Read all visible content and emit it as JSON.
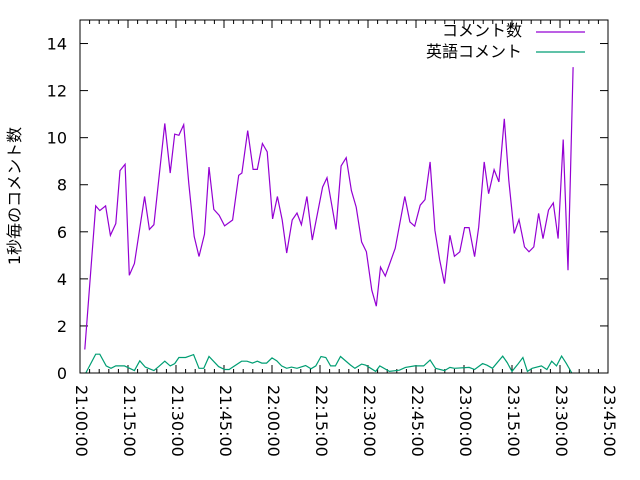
{
  "chart_data": {
    "type": "line",
    "title": "",
    "xlabel": "",
    "ylabel": "1秒毎のコメント数",
    "xlim_minutes_from_2100": [
      0,
      165
    ],
    "ylim": [
      0,
      15
    ],
    "x_ticks": [
      "21:00:00",
      "21:15:00",
      "21:30:00",
      "21:45:00",
      "22:00:00",
      "22:15:00",
      "22:30:00",
      "22:45:00",
      "23:00:00",
      "23:15:00",
      "23:30:00",
      "23:45:00"
    ],
    "x_tick_minutes": [
      0,
      15,
      30,
      45,
      60,
      75,
      90,
      105,
      120,
      135,
      150,
      165
    ],
    "y_ticks": [
      "0",
      "2",
      "4",
      "6",
      "8",
      "10",
      "12",
      "14"
    ],
    "y_tick_values": [
      0,
      2,
      4,
      6,
      8,
      10,
      12,
      14
    ],
    "grid": false,
    "legend_position": "top-right",
    "series": [
      {
        "name": "コメント数",
        "color": "#9400d3",
        "points": [
          [
            1.5,
            1.0
          ],
          [
            4.9,
            7.1
          ],
          [
            6.2,
            6.9
          ],
          [
            8.0,
            7.1
          ],
          [
            9.5,
            5.85
          ],
          [
            11.2,
            6.35
          ],
          [
            12.5,
            8.6
          ],
          [
            14.1,
            8.87
          ],
          [
            15.4,
            4.15
          ],
          [
            17.0,
            4.65
          ],
          [
            20.2,
            7.5
          ],
          [
            21.7,
            6.1
          ],
          [
            23.1,
            6.3
          ],
          [
            26.5,
            10.6
          ],
          [
            28.2,
            8.5
          ],
          [
            29.6,
            10.15
          ],
          [
            30.9,
            10.1
          ],
          [
            32.4,
            10.55
          ],
          [
            34.0,
            8.05
          ],
          [
            35.7,
            5.8
          ],
          [
            37.2,
            4.95
          ],
          [
            38.9,
            5.9
          ],
          [
            40.3,
            8.75
          ],
          [
            41.8,
            6.95
          ],
          [
            43.5,
            6.7
          ],
          [
            45.2,
            6.25
          ],
          [
            47.7,
            6.5
          ],
          [
            49.6,
            8.4
          ],
          [
            50.6,
            8.5
          ],
          [
            52.4,
            10.3
          ],
          [
            54.1,
            8.65
          ],
          [
            55.4,
            8.65
          ],
          [
            57.0,
            9.75
          ],
          [
            58.5,
            9.4
          ],
          [
            60.2,
            6.55
          ],
          [
            61.7,
            7.5
          ],
          [
            63.2,
            6.5
          ],
          [
            64.6,
            5.1
          ],
          [
            66.3,
            6.5
          ],
          [
            67.8,
            6.8
          ],
          [
            69.2,
            6.3
          ],
          [
            70.9,
            7.5
          ],
          [
            72.6,
            5.65
          ],
          [
            75.8,
            7.9
          ],
          [
            77.2,
            8.3
          ],
          [
            80.0,
            6.1
          ],
          [
            81.6,
            8.8
          ],
          [
            83.2,
            9.15
          ],
          [
            84.8,
            7.75
          ],
          [
            86.3,
            7.05
          ],
          [
            88.0,
            5.57
          ],
          [
            89.5,
            5.15
          ],
          [
            91.2,
            3.52
          ],
          [
            92.6,
            2.84
          ],
          [
            93.9,
            4.5
          ],
          [
            95.4,
            4.12
          ],
          [
            98.5,
            5.3
          ],
          [
            101.5,
            7.5
          ],
          [
            103.1,
            6.42
          ],
          [
            104.6,
            6.24
          ],
          [
            106.3,
            7.13
          ],
          [
            107.8,
            7.37
          ],
          [
            109.4,
            8.97
          ],
          [
            110.9,
            6.07
          ],
          [
            112.4,
            4.8
          ],
          [
            113.9,
            3.8
          ],
          [
            115.6,
            5.85
          ],
          [
            117.0,
            4.96
          ],
          [
            118.7,
            5.15
          ],
          [
            120.2,
            6.18
          ],
          [
            121.6,
            6.18
          ],
          [
            123.3,
            4.94
          ],
          [
            124.6,
            6.2
          ],
          [
            126.3,
            8.97
          ],
          [
            127.7,
            7.62
          ],
          [
            129.4,
            8.64
          ],
          [
            130.9,
            8.12
          ],
          [
            132.6,
            10.8
          ],
          [
            134.0,
            8.19
          ],
          [
            135.7,
            5.93
          ],
          [
            137.2,
            6.52
          ],
          [
            138.9,
            5.36
          ],
          [
            140.3,
            5.15
          ],
          [
            141.8,
            5.36
          ],
          [
            143.3,
            6.78
          ],
          [
            144.7,
            5.71
          ],
          [
            146.4,
            6.92
          ],
          [
            147.9,
            7.23
          ],
          [
            149.4,
            5.71
          ],
          [
            151.0,
            9.92
          ],
          [
            152.5,
            4.37
          ],
          [
            153.3,
            8.68
          ],
          [
            154.1,
            13.0
          ]
        ]
      },
      {
        "name": "英語コメント",
        "color": "#009e73",
        "points": [
          [
            1.8,
            0
          ],
          [
            4.9,
            0.8
          ],
          [
            6.2,
            0.8
          ],
          [
            8.2,
            0.3
          ],
          [
            9.7,
            0.2
          ],
          [
            11.2,
            0.3
          ],
          [
            13.9,
            0.3
          ],
          [
            17.0,
            0.1
          ],
          [
            18.7,
            0.52
          ],
          [
            20.4,
            0.25
          ],
          [
            23.1,
            0.1
          ],
          [
            24.6,
            0.27
          ],
          [
            26.5,
            0.5
          ],
          [
            28.2,
            0.3
          ],
          [
            29.6,
            0.4
          ],
          [
            30.9,
            0.66
          ],
          [
            33.0,
            0.66
          ],
          [
            35.5,
            0.78
          ],
          [
            37.2,
            0.2
          ],
          [
            38.7,
            0.2
          ],
          [
            40.3,
            0.7
          ],
          [
            43.3,
            0.27
          ],
          [
            45.2,
            0.15
          ],
          [
            46.6,
            0.15
          ],
          [
            50.5,
            0.5
          ],
          [
            52.2,
            0.5
          ],
          [
            53.9,
            0.42
          ],
          [
            55.4,
            0.5
          ],
          [
            56.8,
            0.42
          ],
          [
            58.3,
            0.42
          ],
          [
            60.0,
            0.64
          ],
          [
            61.5,
            0.52
          ],
          [
            63.0,
            0.3
          ],
          [
            64.6,
            0.2
          ],
          [
            66.1,
            0.25
          ],
          [
            67.8,
            0.2
          ],
          [
            70.5,
            0.32
          ],
          [
            72.2,
            0.18
          ],
          [
            73.7,
            0.3
          ],
          [
            75.3,
            0.7
          ],
          [
            76.8,
            0.66
          ],
          [
            78.3,
            0.3
          ],
          [
            79.8,
            0.3
          ],
          [
            81.4,
            0.7
          ],
          [
            84.5,
            0.34
          ],
          [
            85.9,
            0.2
          ],
          [
            88.0,
            0.38
          ],
          [
            89.3,
            0.33
          ],
          [
            92.4,
            0.07
          ],
          [
            93.7,
            0.3
          ],
          [
            96.7,
            0.07
          ],
          [
            99.8,
            0.12
          ],
          [
            101.7,
            0.24
          ],
          [
            104.6,
            0.3
          ],
          [
            107.4,
            0.3
          ],
          [
            109.4,
            0.55
          ],
          [
            111.1,
            0.2
          ],
          [
            113.9,
            0.1
          ],
          [
            115.6,
            0.24
          ],
          [
            117.0,
            0.2
          ],
          [
            121.6,
            0.24
          ],
          [
            123.3,
            0.15
          ],
          [
            125.8,
            0.4
          ],
          [
            127.2,
            0.33
          ],
          [
            128.9,
            0.2
          ],
          [
            132.1,
            0.72
          ],
          [
            133.5,
            0.44
          ],
          [
            135.0,
            0.07
          ],
          [
            136.7,
            0.35
          ],
          [
            138.4,
            0.66
          ],
          [
            139.8,
            0.07
          ],
          [
            141.3,
            0.2
          ],
          [
            144.2,
            0.3
          ],
          [
            145.9,
            0.15
          ],
          [
            147.4,
            0.5
          ],
          [
            148.9,
            0.3
          ],
          [
            150.5,
            0.72
          ],
          [
            152.0,
            0.4
          ],
          [
            153.7,
            0
          ]
        ]
      }
    ]
  }
}
